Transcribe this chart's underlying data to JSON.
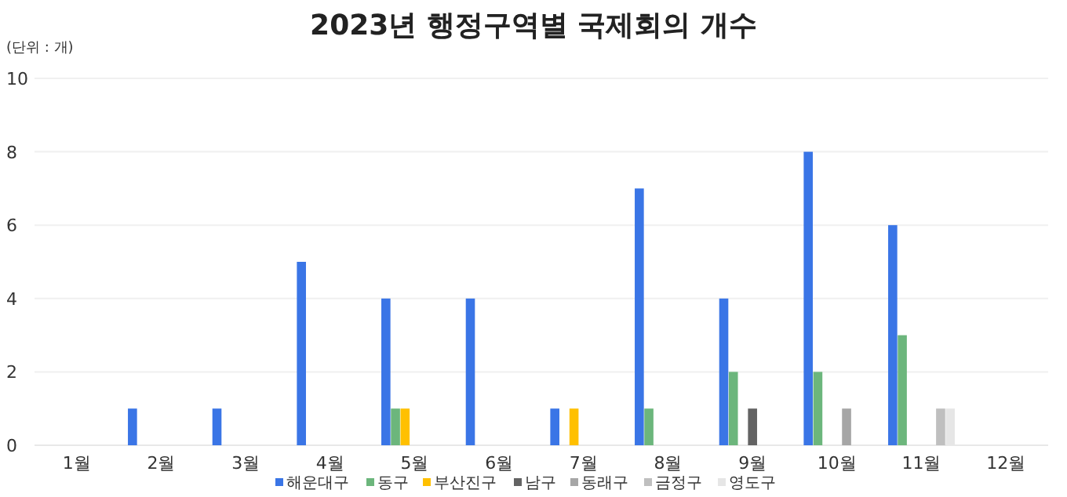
{
  "chart_data": {
    "type": "bar",
    "title": "2023년  행정구역별 국제회의 개수",
    "annotations": [
      "(단위 : 개)"
    ],
    "categories": [
      "1월",
      "2월",
      "3월",
      "4월",
      "5월",
      "6월",
      "7월",
      "8월",
      "9월",
      "10월",
      "11월",
      "12월"
    ],
    "series": [
      {
        "name": "해운대구",
        "color": "#3a75e6",
        "values": [
          0,
          1,
          1,
          5,
          4,
          4,
          1,
          7,
          4,
          8,
          6,
          0
        ]
      },
      {
        "name": "동구",
        "color": "#6cb67c",
        "values": [
          0,
          0,
          0,
          0,
          1,
          0,
          0,
          1,
          2,
          2,
          3,
          0
        ]
      },
      {
        "name": "부산진구",
        "color": "#ffc000",
        "values": [
          0,
          0,
          0,
          0,
          1,
          0,
          1,
          0,
          0,
          0,
          0,
          0
        ]
      },
      {
        "name": "남구",
        "color": "#636363",
        "values": [
          0,
          0,
          0,
          0,
          0,
          0,
          0,
          0,
          1,
          0,
          0,
          0
        ]
      },
      {
        "name": "동래구",
        "color": "#a6a6a6",
        "values": [
          0,
          0,
          0,
          0,
          0,
          0,
          0,
          0,
          0,
          1,
          0,
          0
        ]
      },
      {
        "name": "금정구",
        "color": "#bfbfbf",
        "values": [
          0,
          0,
          0,
          0,
          0,
          0,
          0,
          0,
          0,
          0,
          1,
          0
        ]
      },
      {
        "name": "영도구",
        "color": "#e6e6e6",
        "values": [
          0,
          0,
          0,
          0,
          0,
          0,
          0,
          0,
          0,
          0,
          1,
          0
        ]
      }
    ],
    "ylim": [
      0,
      10
    ],
    "yticks": [
      0,
      2,
      4,
      6,
      8,
      10
    ],
    "grid": "y",
    "legend": "bottom"
  }
}
